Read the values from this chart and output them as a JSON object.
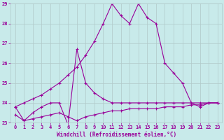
{
  "xlabel": "Windchill (Refroidissement éolien,°C)",
  "bg_color": "#c8eaea",
  "grid_color": "#b0c8c8",
  "line_color": "#990099",
  "xmin": 0,
  "xmax": 23,
  "ymin": 23,
  "ymax": 29,
  "line1_x": [
    0,
    1,
    2,
    3,
    4,
    5,
    6,
    7,
    8,
    9,
    10,
    11,
    12,
    13,
    14,
    15,
    16,
    17,
    18,
    19,
    20,
    21,
    22,
    23
  ],
  "line1_y": [
    23.8,
    24.0,
    24.2,
    24.4,
    24.7,
    25.0,
    25.4,
    25.8,
    26.4,
    27.1,
    28.0,
    29.0,
    28.4,
    28.0,
    29.0,
    28.3,
    28.0,
    26.0,
    25.5,
    25.0,
    24.0,
    23.8,
    24.0,
    24.0
  ],
  "line2_x": [
    0,
    1,
    2,
    3,
    4,
    5,
    6,
    7,
    8,
    9,
    10,
    11,
    12,
    13,
    14,
    15,
    16,
    17,
    18,
    19,
    20,
    21,
    22,
    23
  ],
  "line2_y": [
    23.8,
    23.1,
    23.5,
    23.8,
    24.0,
    24.0,
    22.9,
    26.7,
    25.0,
    24.5,
    24.2,
    24.0,
    24.0,
    24.0,
    24.0,
    24.0,
    24.0,
    24.0,
    24.0,
    24.0,
    24.0,
    24.0,
    24.0,
    24.0
  ],
  "line3_x": [
    0,
    1,
    2,
    3,
    4,
    5,
    6,
    7,
    8,
    9,
    10,
    11,
    12,
    13,
    14,
    15,
    16,
    17,
    18,
    19,
    20,
    21,
    22,
    23
  ],
  "line3_y": [
    23.4,
    23.1,
    23.2,
    23.3,
    23.4,
    23.5,
    23.3,
    23.1,
    23.3,
    23.4,
    23.5,
    23.6,
    23.6,
    23.7,
    23.7,
    23.7,
    23.7,
    23.8,
    23.8,
    23.8,
    23.9,
    23.9,
    24.0,
    24.0
  ]
}
